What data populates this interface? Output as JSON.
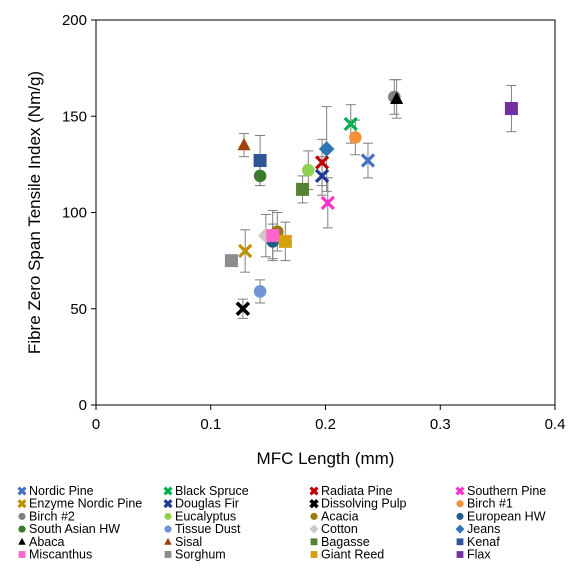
{
  "chart_data": {
    "type": "scatter",
    "title": "",
    "xlabel": "MFC Length (mm)",
    "ylabel": "Fibre Zero Span Tensile Index (Nm/g)",
    "xlim": [
      0,
      0.4
    ],
    "ylim": [
      0,
      200
    ],
    "xticks": [
      0,
      0.1,
      0.2,
      0.3,
      0.4
    ],
    "xtick_labels": [
      "0",
      "0.1",
      "0.2",
      "0.3",
      "0.4"
    ],
    "yticks": [
      0,
      50,
      100,
      150,
      200
    ],
    "ytick_labels": [
      "0",
      "50",
      "100",
      "150",
      "200"
    ],
    "grid": false,
    "error_bars": true,
    "legend_position": "bottom",
    "series": [
      {
        "name": "Nordic Pine",
        "marker": "x-thin",
        "color": "#4472c4",
        "x": 0.237,
        "y": 127,
        "err": 9
      },
      {
        "name": "Black Spruce",
        "marker": "x-thin",
        "color": "#00b050",
        "x": 0.222,
        "y": 146,
        "err": 10
      },
      {
        "name": "Radiata Pine",
        "marker": "x-thin",
        "color": "#c00000",
        "x": 0.197,
        "y": 126,
        "err": 12
      },
      {
        "name": "Southern Pine",
        "marker": "x-thin",
        "color": "#ff33cc",
        "x": 0.202,
        "y": 105,
        "err": 13
      },
      {
        "name": "Enzyme Nordic Pine",
        "marker": "x-thin",
        "color": "#bf9000",
        "x": 0.13,
        "y": 80,
        "err": 11
      },
      {
        "name": "Douglas Fir",
        "marker": "x-thin",
        "color": "#1f3a93",
        "x": 0.197,
        "y": 119,
        "err": 10
      },
      {
        "name": "Dissolving Pulp",
        "marker": "x-thick",
        "color": "#000000",
        "x": 0.128,
        "y": 50,
        "err": 5
      },
      {
        "name": "Birch #1",
        "marker": "circle",
        "color": "#f4923a",
        "x": 0.226,
        "y": 139,
        "err": 9
      },
      {
        "name": "Birch #2",
        "marker": "circle",
        "color": "#808080",
        "x": 0.26,
        "y": 160,
        "err": 9
      },
      {
        "name": "Eucalyptus",
        "marker": "circle",
        "color": "#92d050",
        "x": 0.185,
        "y": 122,
        "err": 10
      },
      {
        "name": "Acacia",
        "marker": "circle",
        "color": "#9a7b0a",
        "x": 0.158,
        "y": 90,
        "err": 10
      },
      {
        "name": "European HW",
        "marker": "circle",
        "color": "#1f5c8a",
        "x": 0.154,
        "y": 85,
        "err": 9
      },
      {
        "name": "South Asian HW",
        "marker": "circle",
        "color": "#3b7a2a",
        "x": 0.143,
        "y": 119,
        "err": 5
      },
      {
        "name": "Tissue Dust",
        "marker": "circle",
        "color": "#6f93d6",
        "x": 0.143,
        "y": 59,
        "err": 6
      },
      {
        "name": "Cotton",
        "marker": "diamond",
        "color": "#c8c8c8",
        "x": 0.148,
        "y": 88,
        "err": 11
      },
      {
        "name": "Jeans",
        "marker": "diamond",
        "color": "#2e75b6",
        "x": 0.201,
        "y": 133,
        "err": 22
      },
      {
        "name": "Abaca",
        "marker": "triangle",
        "color": "#000000",
        "x": 0.262,
        "y": 159,
        "err": 10
      },
      {
        "name": "Sisal",
        "marker": "triangle",
        "color": "#a0410d",
        "x": 0.129,
        "y": 135,
        "err": 6
      },
      {
        "name": "Bagasse",
        "marker": "square",
        "color": "#548235",
        "x": 0.18,
        "y": 112,
        "err": 7
      },
      {
        "name": "Kenaf",
        "marker": "square",
        "color": "#2f5597",
        "x": 0.143,
        "y": 127,
        "err": 13
      },
      {
        "name": "Miscanthus",
        "marker": "square",
        "color": "#ff66cc",
        "x": 0.154,
        "y": 88,
        "err": 13
      },
      {
        "name": "Sorghum",
        "marker": "square",
        "color": "#8c8c8c",
        "x": 0.118,
        "y": 75,
        "err": 0
      },
      {
        "name": "Giant Reed",
        "marker": "square",
        "color": "#d4a20c",
        "x": 0.165,
        "y": 85,
        "err": 10
      },
      {
        "name": "Flax",
        "marker": "square",
        "color": "#7030a0",
        "x": 0.362,
        "y": 154,
        "err": 12
      }
    ]
  }
}
